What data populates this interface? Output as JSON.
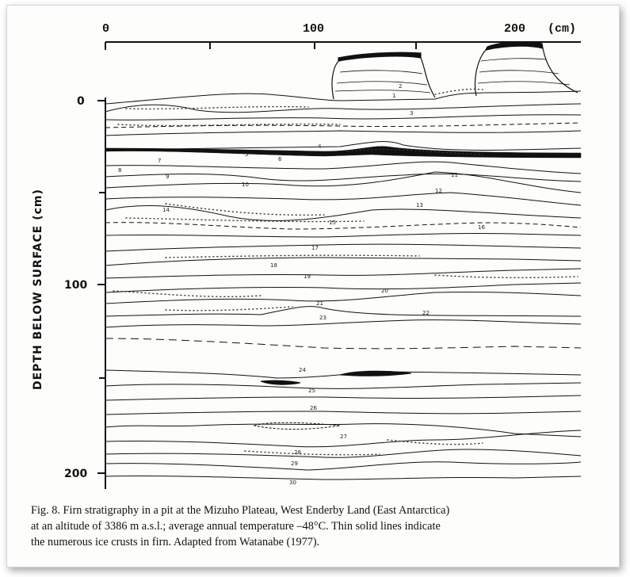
{
  "figure": {
    "horizontal_scale": {
      "ticks": [
        "0",
        "100",
        "200"
      ],
      "unit": "(cm)"
    },
    "vertical_axis": {
      "title": "DEPTH BELOW SURFACE (cm)",
      "ticks": [
        "0",
        "100",
        "200"
      ]
    },
    "layer_labels": [
      "1",
      "2",
      "3",
      "4",
      "5",
      "6",
      "7",
      "8",
      "9",
      "10",
      "11",
      "12",
      "13",
      "14",
      "15",
      "16",
      "17",
      "18",
      "19",
      "20",
      "21",
      "22",
      "23",
      "24",
      "25",
      "26",
      "27",
      "28",
      "29",
      "30"
    ]
  },
  "caption": {
    "line1": "Fig. 8. Firn stratigraphy in a pit at the Mizuho Plateau, West Enderby Land (East Antarctica)",
    "line2": "at an altitude of 3386 m a.s.l.; average annual temperature –48°C. Thin solid lines indicate",
    "line3": "the numerous ice crusts in firn. Adapted from Watanabe (1977)."
  }
}
